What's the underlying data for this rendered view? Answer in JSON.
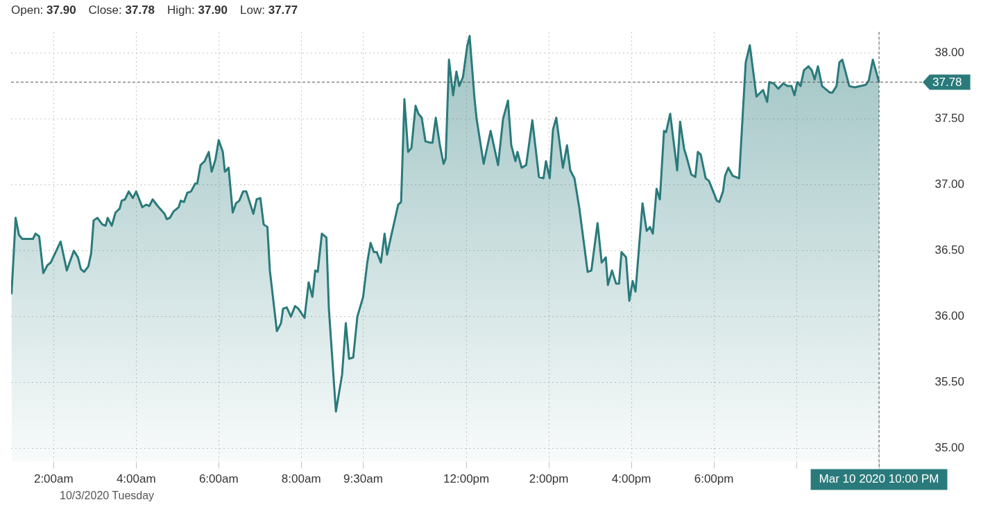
{
  "chart_data": {
    "type": "area",
    "annotations": [
      "Open: 37.90",
      "Close: 37.78",
      "High: 37.90",
      "Low: 37.77",
      "10/3/2020 Tuesday"
    ],
    "x": [
      0.98,
      1.08,
      1.16,
      1.24,
      1.5,
      1.56,
      1.65,
      1.75,
      1.85,
      1.93,
      2.17,
      2.32,
      2.49,
      2.59,
      2.66,
      2.74,
      2.84,
      2.91,
      2.97,
      3.06,
      3.18,
      3.26,
      3.31,
      3.41,
      3.5,
      3.6,
      3.65,
      3.73,
      3.82,
      3.92,
      4.0,
      4.15,
      4.24,
      4.32,
      4.4,
      4.52,
      4.69,
      4.74,
      4.82,
      4.91,
      5.03,
      5.08,
      5.16,
      5.24,
      5.33,
      5.43,
      5.48,
      5.56,
      5.66,
      5.76,
      5.83,
      5.92,
      6.0,
      6.1,
      6.15,
      6.24,
      6.34,
      6.42,
      6.5,
      6.59,
      6.67,
      6.84,
      6.92,
      7.01,
      7.09,
      7.18,
      7.24,
      7.41,
      7.51,
      7.56,
      7.65,
      7.75,
      7.85,
      7.93,
      8.08,
      8.18,
      8.27,
      8.34,
      8.4,
      8.5,
      8.61,
      8.67,
      8.84,
      8.99,
      9.08,
      9.16,
      9.26,
      9.36,
      9.5,
      9.6,
      9.68,
      9.76,
      9.83,
      9.93,
      10.02,
      10.08,
      10.17,
      10.25,
      10.35,
      10.42,
      10.5,
      10.59,
      10.67,
      10.77,
      10.84,
      10.92,
      11.01,
      11.13,
      11.18,
      11.26,
      11.36,
      11.45,
      11.5,
      11.58,
      11.68,
      11.76,
      11.83,
      11.92,
      12.02,
      12.08,
      12.2,
      12.25,
      12.42,
      12.59,
      12.77,
      12.89,
      13.01,
      13.09,
      13.19,
      13.24,
      13.34,
      13.45,
      13.6,
      13.76,
      13.87,
      13.93,
      14.02,
      14.1,
      14.18,
      14.34,
      14.44,
      14.52,
      14.62,
      14.74,
      14.94,
      15.03,
      15.18,
      15.28,
      15.38,
      15.43,
      15.53,
      15.63,
      15.7,
      15.76,
      15.87,
      15.95,
      16.03,
      16.1,
      16.27,
      16.37,
      16.45,
      16.52,
      16.61,
      16.69,
      16.79,
      16.84,
      16.94,
      17.11,
      17.18,
      17.28,
      17.34,
      17.45,
      17.55,
      17.61,
      17.68,
      17.8,
      17.88,
      18.07,
      18.13,
      18.22,
      18.27,
      18.35,
      18.45,
      18.61,
      18.77,
      18.87,
      19.03,
      19.19,
      19.29,
      19.34,
      19.45,
      19.56,
      19.68,
      19.78,
      19.88,
      19.95,
      20.02,
      20.1,
      20.18,
      20.29,
      20.37,
      20.44,
      20.52,
      20.62,
      20.81,
      20.87,
      20.97,
      21.04,
      21.11,
      21.28,
      21.41,
      21.68,
      21.75,
      21.85,
      22.0
    ],
    "series": [
      {
        "color": "#2a7a7b",
        "values": [
          36.17,
          36.75,
          36.62,
          36.59,
          36.59,
          36.63,
          36.61,
          36.33,
          36.39,
          36.41,
          36.57,
          36.35,
          36.5,
          36.45,
          36.36,
          36.34,
          36.38,
          36.48,
          36.73,
          36.75,
          36.7,
          36.69,
          36.75,
          36.69,
          36.79,
          36.82,
          36.88,
          36.89,
          36.95,
          36.9,
          36.95,
          36.83,
          36.85,
          36.84,
          36.89,
          36.84,
          36.78,
          36.74,
          36.75,
          36.8,
          36.83,
          36.88,
          36.87,
          36.94,
          36.95,
          37.01,
          37.01,
          37.15,
          37.18,
          37.25,
          37.1,
          37.19,
          37.34,
          37.25,
          37.1,
          37.13,
          36.79,
          36.86,
          36.88,
          36.95,
          36.95,
          36.78,
          36.89,
          36.9,
          36.7,
          36.68,
          36.35,
          35.89,
          35.95,
          36.06,
          36.07,
          36.0,
          36.08,
          36.06,
          35.99,
          36.26,
          36.15,
          36.35,
          36.34,
          36.63,
          36.6,
          36.06,
          35.28,
          35.56,
          35.95,
          35.68,
          35.69,
          36.0,
          36.15,
          36.41,
          36.56,
          36.49,
          36.49,
          36.41,
          36.63,
          36.47,
          36.6,
          36.71,
          36.85,
          36.87,
          37.65,
          37.25,
          37.28,
          37.6,
          37.54,
          37.51,
          37.33,
          37.32,
          37.32,
          37.51,
          37.3,
          37.16,
          37.2,
          37.95,
          37.68,
          37.86,
          37.75,
          37.82,
          38.05,
          38.13,
          37.65,
          37.5,
          37.16,
          37.41,
          37.15,
          37.5,
          37.64,
          37.3,
          37.18,
          37.25,
          37.13,
          37.15,
          37.49,
          37.06,
          37.05,
          37.18,
          37.05,
          37.42,
          37.51,
          37.13,
          37.3,
          37.11,
          37.05,
          36.82,
          36.34,
          36.35,
          36.71,
          36.41,
          36.45,
          36.24,
          36.35,
          36.25,
          36.25,
          36.49,
          36.45,
          36.12,
          36.27,
          36.19,
          36.86,
          36.65,
          36.68,
          36.63,
          36.97,
          36.89,
          37.41,
          37.4,
          37.54,
          37.11,
          37.48,
          37.27,
          37.21,
          37.08,
          37.06,
          37.25,
          37.23,
          37.05,
          37.03,
          36.88,
          36.87,
          36.95,
          37.07,
          37.13,
          37.07,
          37.05,
          37.93,
          38.06,
          37.67,
          37.72,
          37.63,
          37.78,
          37.77,
          37.73,
          37.77,
          37.75,
          37.75,
          37.68,
          37.78,
          37.75,
          37.87,
          37.9,
          37.87,
          37.8,
          37.9,
          37.75,
          37.7,
          37.7,
          37.75,
          37.93,
          37.95,
          37.75,
          37.74,
          37.76,
          37.79,
          37.95,
          37.78
        ]
      }
    ],
    "xlim": [
      0.97,
      22.05
    ],
    "xticks": [
      {
        "value": 2,
        "label": "2:00am"
      },
      {
        "value": 4,
        "label": "4:00am"
      },
      {
        "value": 6,
        "label": "6:00am"
      },
      {
        "value": 8,
        "label": "8:00am"
      },
      {
        "value": 9.5,
        "label": "9:30am"
      },
      {
        "value": 12,
        "label": "12:00pm"
      },
      {
        "value": 14,
        "label": "2:00pm"
      },
      {
        "value": 16,
        "label": "4:00pm"
      },
      {
        "value": 18,
        "label": "6:00pm"
      },
      {
        "value": 20,
        "label": null
      },
      {
        "value": 22,
        "label": "Mar 10 2020 10:00 PM"
      }
    ],
    "ylim": [
      34.9,
      38.16
    ],
    "yticks": [
      {
        "value": 35,
        "label": "35.00"
      },
      {
        "value": 35.5,
        "label": "35.50"
      },
      {
        "value": 36,
        "label": "36.00"
      },
      {
        "value": 36.5,
        "label": "36.50"
      },
      {
        "value": 37,
        "label": "37.00"
      },
      {
        "value": 37.5,
        "label": "37.50"
      },
      {
        "value": 38,
        "label": "38.00"
      }
    ],
    "ref_lines": [
      {
        "axis": "y",
        "value": 37.78,
        "label": "37.78",
        "color": "#555555",
        "line_style": "dashed"
      },
      {
        "axis": "x",
        "value": 22,
        "color": "#555555",
        "line_style": "dashed"
      }
    ],
    "grid": true,
    "legend": false,
    "marker": "none",
    "line_style": "solid"
  }
}
